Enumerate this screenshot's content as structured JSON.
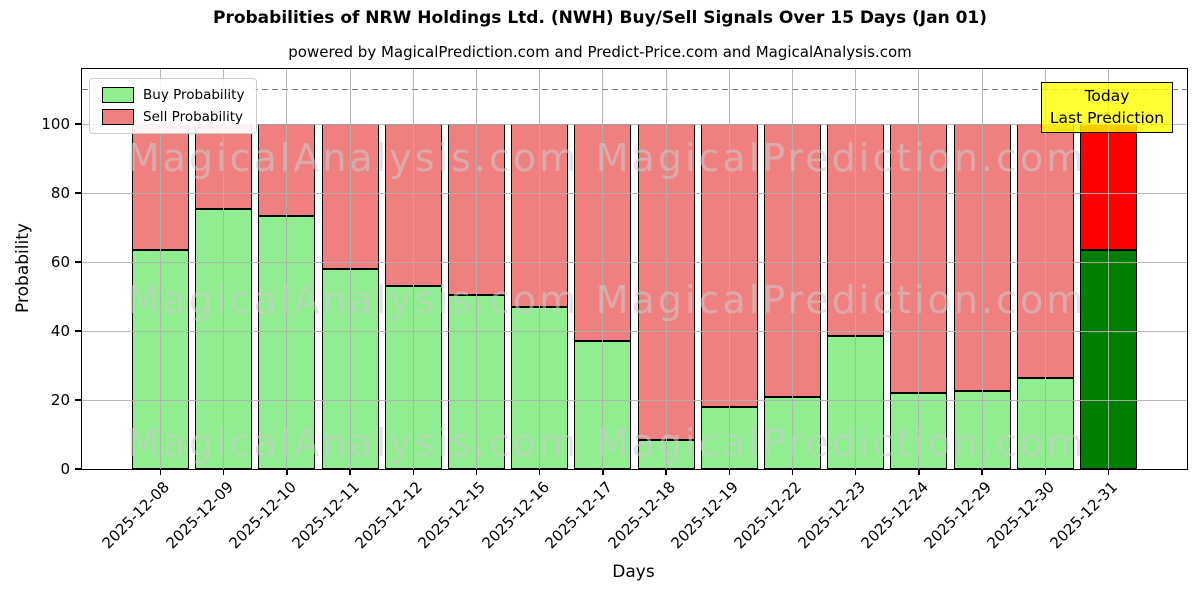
{
  "title": "Probabilities of NRW Holdings Ltd. (NWH) Buy/Sell Signals Over 15 Days (Jan 01)",
  "subtitle": "powered by MagicalPrediction.com and Predict-Price.com and MagicalAnalysis.com",
  "annotation": {
    "line1": "Today",
    "line2": "Last Prediction"
  },
  "watermark": {
    "left": "MagicalAnalysis.com",
    "right": "MagicalPrediction.com"
  },
  "chart_data": {
    "type": "bar",
    "stacked": true,
    "title": "Probabilities of NRW Holdings Ltd. (NWH) Buy/Sell Signals Over 15 Days (Jan 01)",
    "xlabel": "Days",
    "ylabel": "Probability",
    "categories": [
      "2025-12-08",
      "2025-12-09",
      "2025-12-10",
      "2025-12-11",
      "2025-12-12",
      "2025-12-15",
      "2025-12-16",
      "2025-12-17",
      "2025-12-18",
      "2025-12-19",
      "2025-12-22",
      "2025-12-23",
      "2025-12-24",
      "2025-12-29",
      "2025-12-30",
      "2025-12-31"
    ],
    "series": [
      {
        "name": "Buy Probability",
        "values": [
          63.5,
          75.5,
          73.5,
          58,
          53,
          50.5,
          47,
          37,
          8.5,
          18,
          21,
          38.5,
          22,
          22.5,
          26.5,
          63.5
        ],
        "color": "#90EE90",
        "today_color": "#008000"
      },
      {
        "name": "Sell Probability",
        "values": [
          36.5,
          24.5,
          26.5,
          42,
          47,
          49.5,
          53,
          63,
          91.5,
          82,
          79,
          61.5,
          78,
          77.5,
          73.5,
          36.5
        ],
        "color": "#F08080",
        "today_color": "#FF0000"
      }
    ],
    "today_index": 15,
    "yticks": [
      0,
      20,
      40,
      60,
      80,
      100
    ],
    "ylim": [
      0,
      116
    ],
    "reference_line": {
      "y": 110,
      "style": "dashed",
      "color": "#808080"
    },
    "legend_position": "upper-left",
    "grid": true,
    "grid_color": "rgba(176,176,176,0.9)",
    "bar_edge_color": "#000000"
  }
}
